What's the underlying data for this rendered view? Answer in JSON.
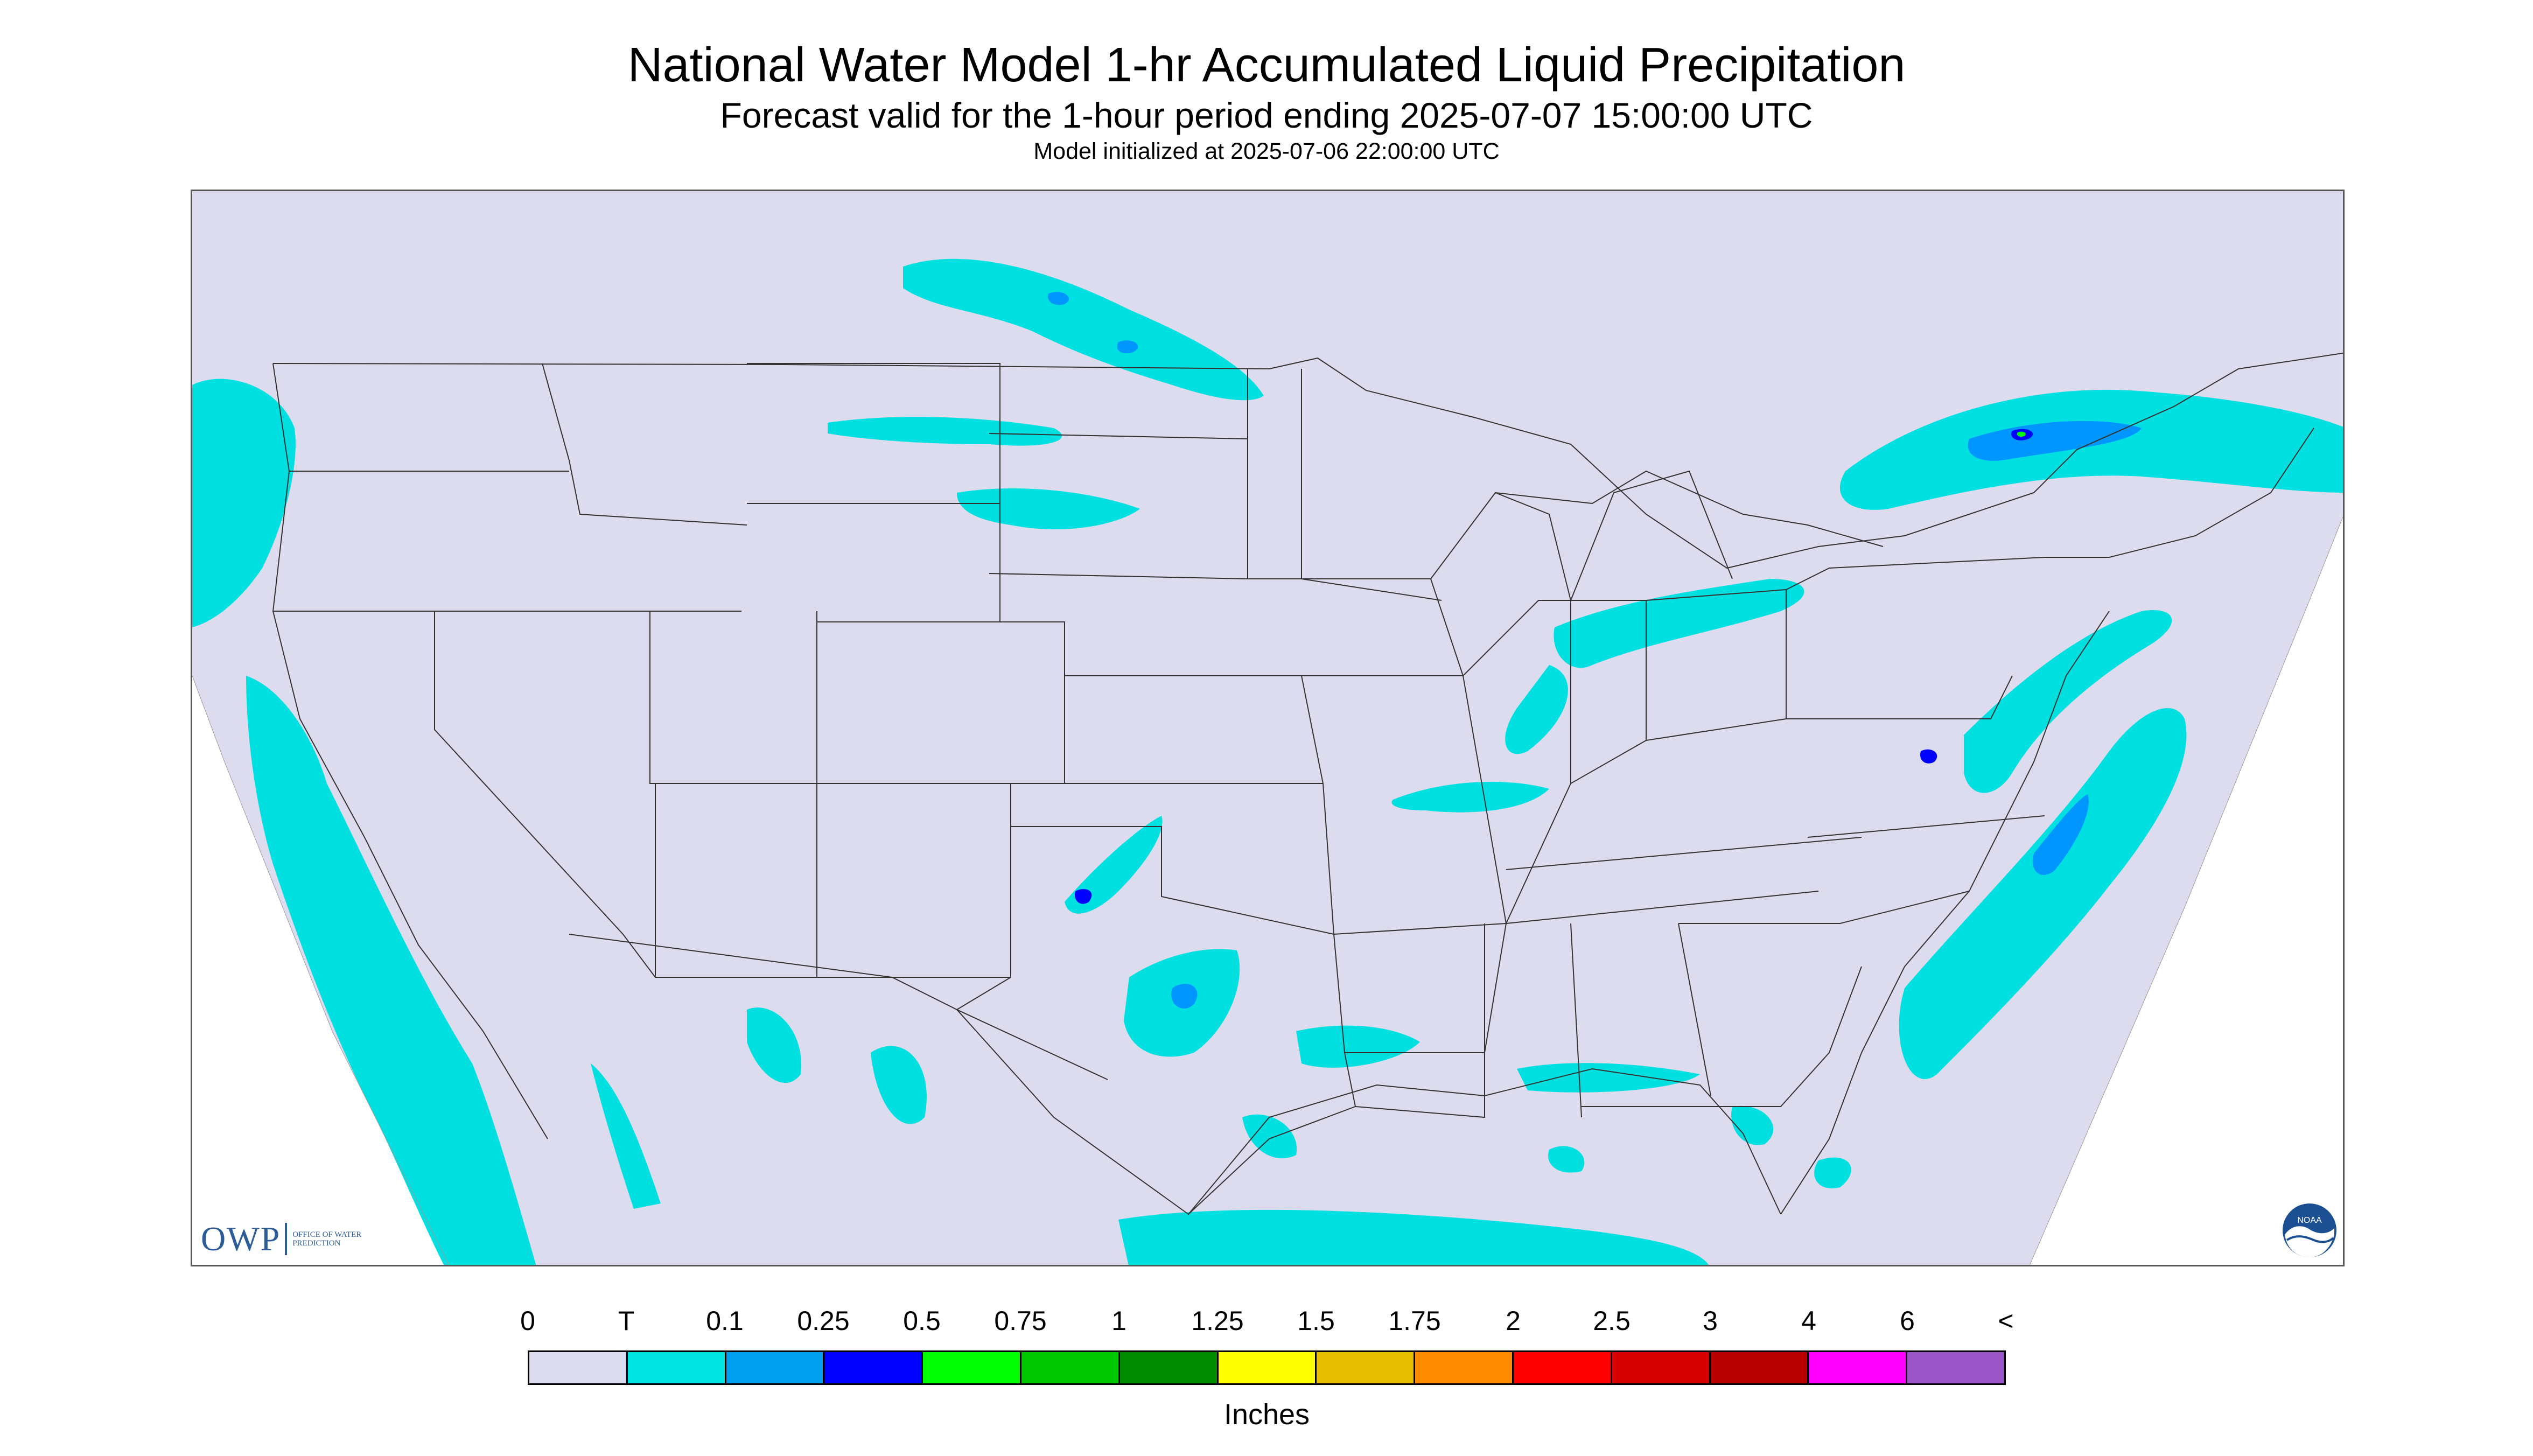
{
  "header": {
    "title": "National Water Model 1-hr Accumulated Liquid Precipitation",
    "subtitle": "Forecast valid for the 1-hour period ending 2025-07-07 15:00:00 UTC",
    "init": "Model initialized at 2025-07-06 22:00:00 UTC"
  },
  "map": {
    "background_color": "#dcdcee",
    "outside_color": "#ffffff",
    "boundary_color": "#333333",
    "precip_colors": {
      "trace": "#00e0e0",
      "p01": "#0096ff",
      "p025": "#0000ff",
      "p05": "#00ff00",
      "p075": "#00c800",
      "p1": "#00a000"
    }
  },
  "logos": {
    "owp_letters": "OWP",
    "owp_text": "OFFICE OF WATER PREDICTION",
    "noaa": "NOAA"
  },
  "legend": {
    "ticks": [
      "0",
      "T",
      "0.1",
      "0.25",
      "0.5",
      "0.75",
      "1",
      "1.25",
      "1.5",
      "1.75",
      "2",
      "2.5",
      "3",
      "4",
      "6",
      "<"
    ],
    "colors": [
      "#dcdcee",
      "#00e4e4",
      "#00a0f0",
      "#0000ff",
      "#00ff00",
      "#00c800",
      "#008c00",
      "#ffff00",
      "#e6c000",
      "#ff8c00",
      "#ff0000",
      "#d80000",
      "#b80000",
      "#ff00ff",
      "#9c55c8"
    ],
    "unit": "Inches"
  }
}
